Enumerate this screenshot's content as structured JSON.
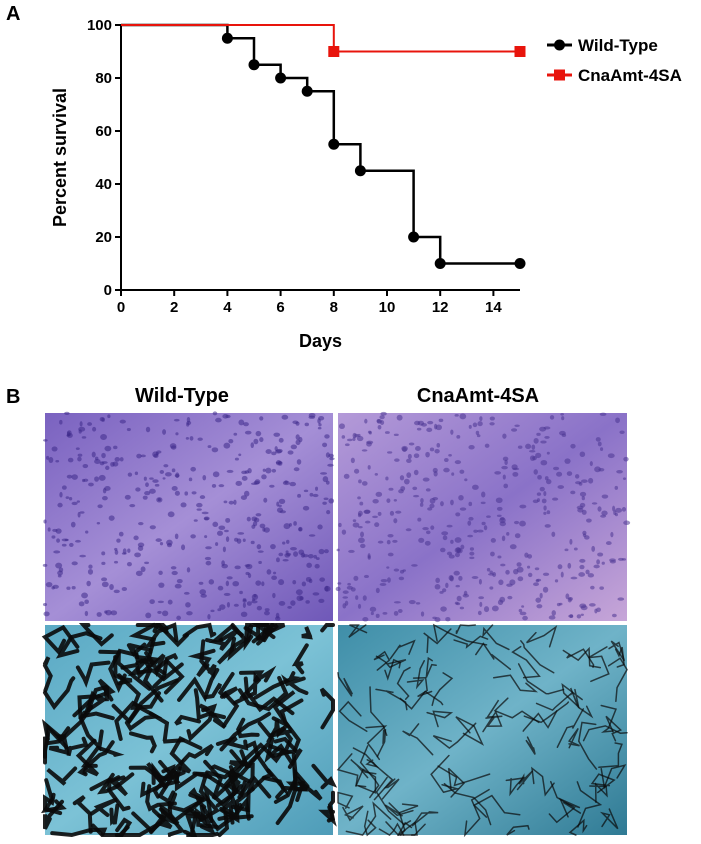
{
  "chart_data": {
    "type": "line",
    "step": true,
    "x_label": "Days",
    "y_label": "Percent survival",
    "xlim": [
      0,
      15
    ],
    "xticks": [
      0,
      2,
      4,
      6,
      8,
      10,
      12,
      14
    ],
    "ylim": [
      0,
      100
    ],
    "yticks": [
      0,
      20,
      40,
      60,
      80,
      100
    ],
    "series": [
      {
        "name": "Wild-Type",
        "color": "#000000",
        "marker": "circle",
        "x": [
          0,
          4,
          5,
          6,
          7,
          8,
          9,
          11,
          12,
          15
        ],
        "values": [
          100,
          95,
          85,
          80,
          75,
          55,
          45,
          20,
          10,
          10
        ]
      },
      {
        "name": "CnaAmt-4SA",
        "color": "#e8140c",
        "marker": "square",
        "x": [
          0,
          8,
          15
        ],
        "values": [
          100,
          90,
          90
        ]
      }
    ]
  },
  "panel_labels": [
    "A",
    "B"
  ],
  "histology": {
    "columns": [
      "Wild-Type",
      "CnaAmt-4SA"
    ]
  }
}
